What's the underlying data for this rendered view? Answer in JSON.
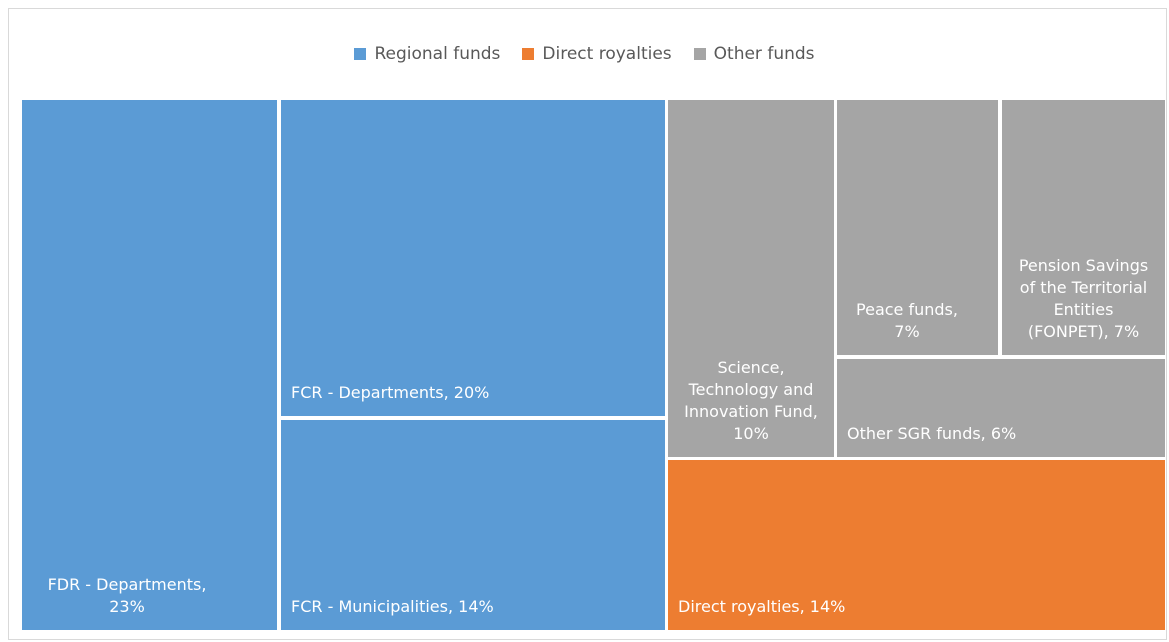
{
  "chart_data": {
    "type": "treemap",
    "series": [
      {
        "name": "Regional funds",
        "color": "#5b9bd5",
        "values": [
          23,
          20,
          14
        ],
        "value_labels": [
          "FDR - Departments, 23%",
          "FCR - Departments, 20%",
          "FCR - Municipalities, 14%"
        ]
      },
      {
        "name": "Direct royalties",
        "color": "#ed7d31",
        "values": [
          14
        ],
        "value_labels": [
          "Direct royalties, 14%"
        ]
      },
      {
        "name": "Other funds",
        "color": "#a5a5a5",
        "values": [
          10,
          7,
          7,
          6
        ],
        "value_labels": [
          "Science, Technology and Innovation Fund, 10%",
          "Peace funds, 7%",
          "Pension Savings of the Territorial Entities (FONPET), 7%",
          "Other SGR funds, 6%"
        ]
      }
    ],
    "legend": "top"
  }
}
